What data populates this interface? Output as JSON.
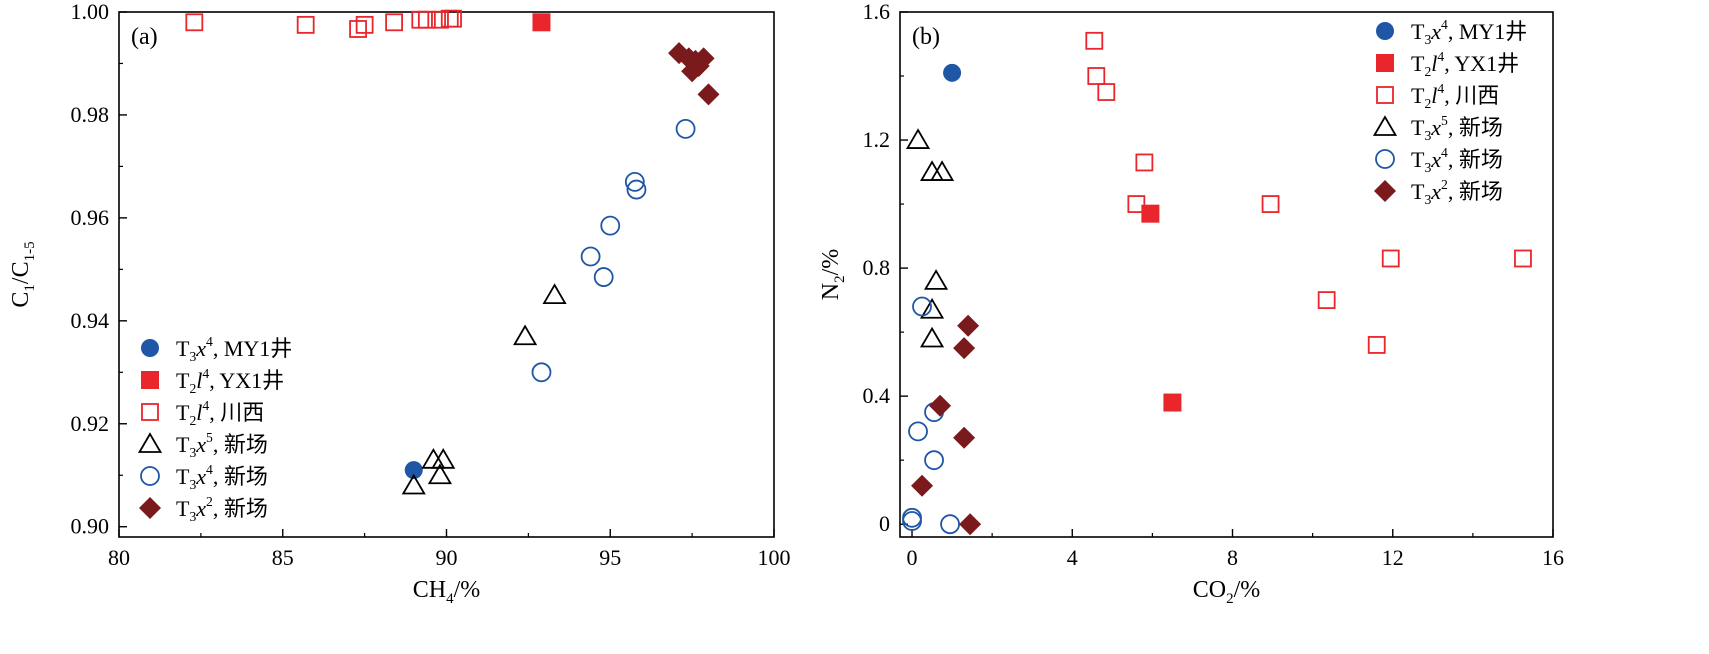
{
  "colors": {
    "blue": "#1f56a6",
    "red": "#e8262b",
    "darkred": "#7a1a1d",
    "black": "#000000"
  },
  "chart_data": [
    {
      "type": "scatter",
      "panel_label": "(a)",
      "xlim": [
        80,
        100
      ],
      "ylim": [
        0.898,
        1.0
      ],
      "x_ticks": [
        "80",
        "85",
        "90",
        "95",
        "100"
      ],
      "y_ticks": [
        "0.90",
        "0.92",
        "0.94",
        "0.96",
        "0.98",
        "1.00"
      ],
      "xlabel": {
        "main": "CH",
        "sub": "4",
        "unit": "/%"
      },
      "ylabel": {
        "main": "C",
        "sub1": "1",
        "mid": "/C",
        "sub2": "1-5"
      },
      "legend_position": "lower-left",
      "series": [
        {
          "label_main": "T",
          "label_sub": "3",
          "label_var": "x",
          "label_sup": "4",
          "label_tail": ", MY1井",
          "marker": "filled-circle",
          "color": "#1f56a6",
          "points": [
            [
              89.0,
              0.911
            ]
          ]
        },
        {
          "label_main": "T",
          "label_sub": "2",
          "label_var": "l",
          "label_sup": "4",
          "label_tail": ",  YX1井",
          "marker": "filled-square",
          "color": "#e8262b",
          "points": [
            [
              92.9,
              0.998
            ]
          ]
        },
        {
          "label_main": "T",
          "label_sub": "2",
          "label_var": "l",
          "label_sup": "4",
          "label_tail": ", 川西",
          "marker": "open-square",
          "color": "#e8262b",
          "points": [
            [
              82.3,
              0.998
            ],
            [
              85.7,
              0.9975
            ],
            [
              87.3,
              0.9967
            ],
            [
              87.5,
              0.9975
            ],
            [
              88.4,
              0.998
            ],
            [
              89.2,
              0.9985
            ],
            [
              89.4,
              0.9985
            ],
            [
              89.8,
              0.9985
            ],
            [
              90.1,
              0.9987
            ],
            [
              90.2,
              0.9987
            ]
          ]
        },
        {
          "label_main": "T",
          "label_sub": "3",
          "label_var": "x",
          "label_sup": "5",
          "label_tail": ", 新场",
          "marker": "open-triangle",
          "color": "#000000",
          "points": [
            [
              89.0,
              0.908
            ],
            [
              89.6,
              0.913
            ],
            [
              89.9,
              0.913
            ],
            [
              89.8,
              0.91
            ],
            [
              92.4,
              0.937
            ],
            [
              93.3,
              0.945
            ]
          ]
        },
        {
          "label_main": "T",
          "label_sub": "3",
          "label_var": "x",
          "label_sup": "4",
          "label_tail": ", 新场",
          "marker": "open-circle",
          "color": "#1f56a6",
          "points": [
            [
              92.9,
              0.93
            ],
            [
              94.4,
              0.9525
            ],
            [
              94.8,
              0.9485
            ],
            [
              95.0,
              0.9585
            ],
            [
              95.75,
              0.967
            ],
            [
              95.8,
              0.9655
            ],
            [
              97.3,
              0.9773
            ]
          ]
        },
        {
          "label_main": "T",
          "label_sub": "3",
          "label_var": "x",
          "label_sup": "2",
          "label_tail": ", 新场",
          "marker": "filled-diamond",
          "color": "#7a1a1d",
          "points": [
            [
              97.1,
              0.992
            ],
            [
              97.4,
              0.991
            ],
            [
              97.5,
              0.9885
            ],
            [
              97.6,
              0.9905
            ],
            [
              97.85,
              0.991
            ],
            [
              97.7,
              0.9895
            ],
            [
              98.0,
              0.984
            ]
          ]
        }
      ]
    },
    {
      "type": "scatter",
      "panel_label": "(b)",
      "xlim": [
        -0.3,
        16
      ],
      "ylim": [
        -0.04,
        1.6
      ],
      "x_ticks": [
        "0",
        "4",
        "8",
        "12",
        "16"
      ],
      "y_ticks": [
        "0",
        "0.4",
        "0.8",
        "1.2",
        "1.6"
      ],
      "xlabel": {
        "main": "CO",
        "sub": "2",
        "unit": "/%"
      },
      "ylabel": {
        "main": "N",
        "sub": "2",
        "unit": "/%"
      },
      "legend_position": "top-right",
      "series": [
        {
          "label_main": "T",
          "label_sub": "3",
          "label_var": "x",
          "label_sup": "4",
          "label_tail": ", MY1井",
          "marker": "filled-circle",
          "color": "#1f56a6",
          "points": [
            [
              1.0,
              1.41
            ]
          ]
        },
        {
          "label_main": "T",
          "label_sub": "2",
          "label_var": "l",
          "label_sup": "4",
          "label_tail": ",  YX1井",
          "marker": "filled-square",
          "color": "#e8262b",
          "points": [
            [
              5.95,
              0.97
            ],
            [
              6.5,
              0.38
            ]
          ]
        },
        {
          "label_main": "T",
          "label_sub": "2",
          "label_var": "l",
          "label_sup": "4",
          "label_tail": ", 川西",
          "marker": "open-square",
          "color": "#e8262b",
          "points": [
            [
              4.55,
              1.51
            ],
            [
              4.6,
              1.4
            ],
            [
              4.85,
              1.35
            ],
            [
              5.8,
              1.13
            ],
            [
              5.6,
              1.0
            ],
            [
              8.95,
              1.0
            ],
            [
              10.35,
              0.7
            ],
            [
              11.6,
              0.56
            ],
            [
              11.95,
              0.83
            ],
            [
              15.25,
              0.83
            ]
          ]
        },
        {
          "label_main": "T",
          "label_sub": "3",
          "label_var": "x",
          "label_sup": "5",
          "label_tail": ", 新场",
          "marker": "open-triangle",
          "color": "#000000",
          "points": [
            [
              0.15,
              1.2
            ],
            [
              0.5,
              1.1
            ],
            [
              0.75,
              1.1
            ],
            [
              0.6,
              0.76
            ],
            [
              0.5,
              0.67
            ],
            [
              0.5,
              0.58
            ]
          ]
        },
        {
          "label_main": "T",
          "label_sub": "3",
          "label_var": "x",
          "label_sup": "4",
          "label_tail": ", 新场",
          "marker": "open-circle",
          "color": "#1f56a6",
          "points": [
            [
              0.25,
              0.68
            ],
            [
              0.55,
              0.35
            ],
            [
              0.15,
              0.29
            ],
            [
              0.55,
              0.2
            ],
            [
              0.0,
              0.02
            ],
            [
              0.0,
              0.01
            ],
            [
              0.95,
              0.0
            ]
          ]
        },
        {
          "label_main": "T",
          "label_sub": "3",
          "label_var": "x",
          "label_sup": "2",
          "label_tail": ", 新场",
          "marker": "filled-diamond",
          "color": "#7a1a1d",
          "points": [
            [
              1.4,
              0.62
            ],
            [
              1.3,
              0.55
            ],
            [
              0.7,
              0.37
            ],
            [
              1.3,
              0.27
            ],
            [
              0.25,
              0.12
            ],
            [
              1.45,
              0.0
            ]
          ]
        }
      ]
    }
  ]
}
